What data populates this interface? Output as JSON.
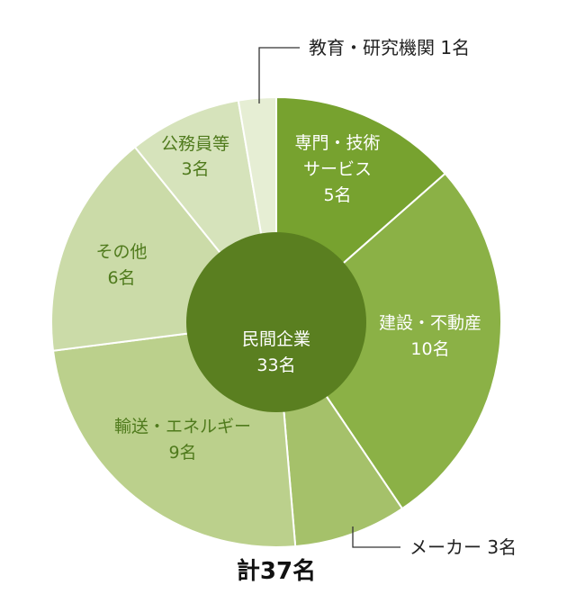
{
  "chart_data": {
    "type": "pie",
    "total_label": "計37名",
    "inner": {
      "category": "民間企業",
      "value_label": "33名",
      "value": 33,
      "color": "#5a7f20"
    },
    "slices": [
      {
        "category": "専門・技術サービス",
        "line1": "専門・技術",
        "line2": "サービス",
        "value_label": "5名",
        "value": 5,
        "color": "#77a22f"
      },
      {
        "category": "建設・不動産",
        "line1": "建設・不動産",
        "value_label": "10名",
        "value": 10,
        "color": "#8bb146"
      },
      {
        "category": "メーカー",
        "text": "メーカー 3名",
        "value_label": "3名",
        "value": 3,
        "color": "#a5c16a"
      },
      {
        "category": "輸送・エネルギー",
        "line1": "輸送・エネルギー",
        "value_label": "9名",
        "value": 9,
        "color": "#bbd08c"
      },
      {
        "category": "その他",
        "line1": "その他",
        "value_label": "6名",
        "value": 6,
        "color": "#cbdba8"
      },
      {
        "category": "公務員等",
        "line1": "公務員等",
        "value_label": "3名",
        "value": 3,
        "color": "#d6e3bb"
      },
      {
        "category": "教育・研究機関",
        "text": "教育・研究機関 1名",
        "value_label": "1名",
        "value": 1,
        "color": "#e6eed4"
      }
    ]
  }
}
